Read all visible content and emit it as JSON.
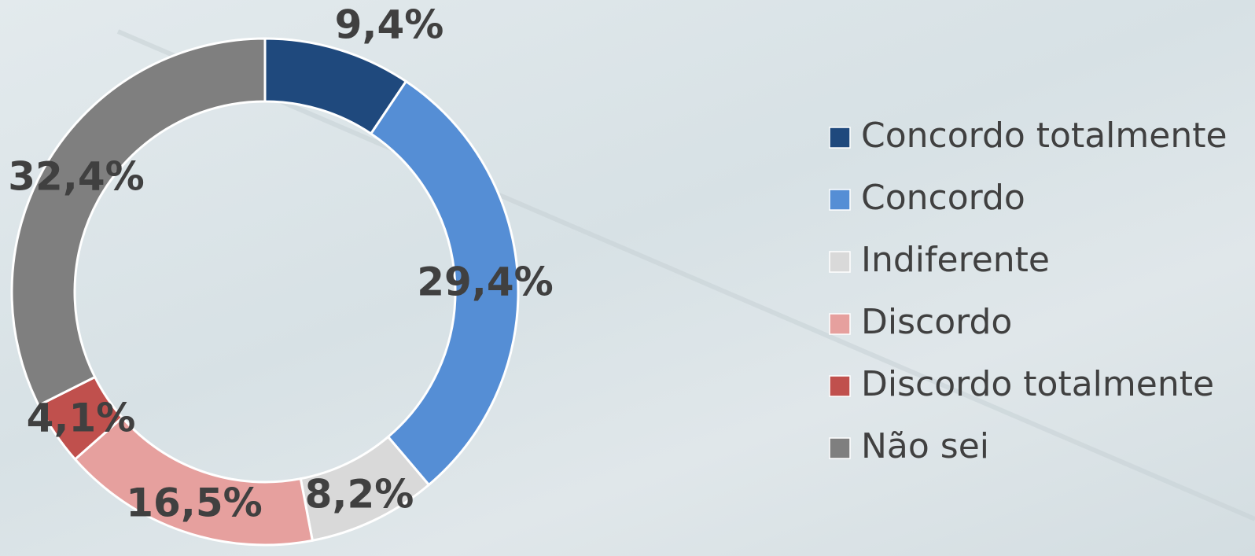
{
  "chart_data": {
    "type": "donut",
    "categories": [
      "Concordo totalmente",
      "Concordo",
      "Indiferente",
      "Discordo",
      "Discordo totalmente",
      "Não sei"
    ],
    "values": [
      9.4,
      29.4,
      8.2,
      16.5,
      4.1,
      32.4
    ],
    "value_labels": [
      "9,4%",
      "29,4%",
      "8,2%",
      "16,5%",
      "4,1%",
      "32,4%"
    ],
    "colors": [
      "#1f497d",
      "#558ed5",
      "#d9d9d9",
      "#e6a09e",
      "#c0504d",
      "#7f7f7f"
    ],
    "legend": "right"
  }
}
